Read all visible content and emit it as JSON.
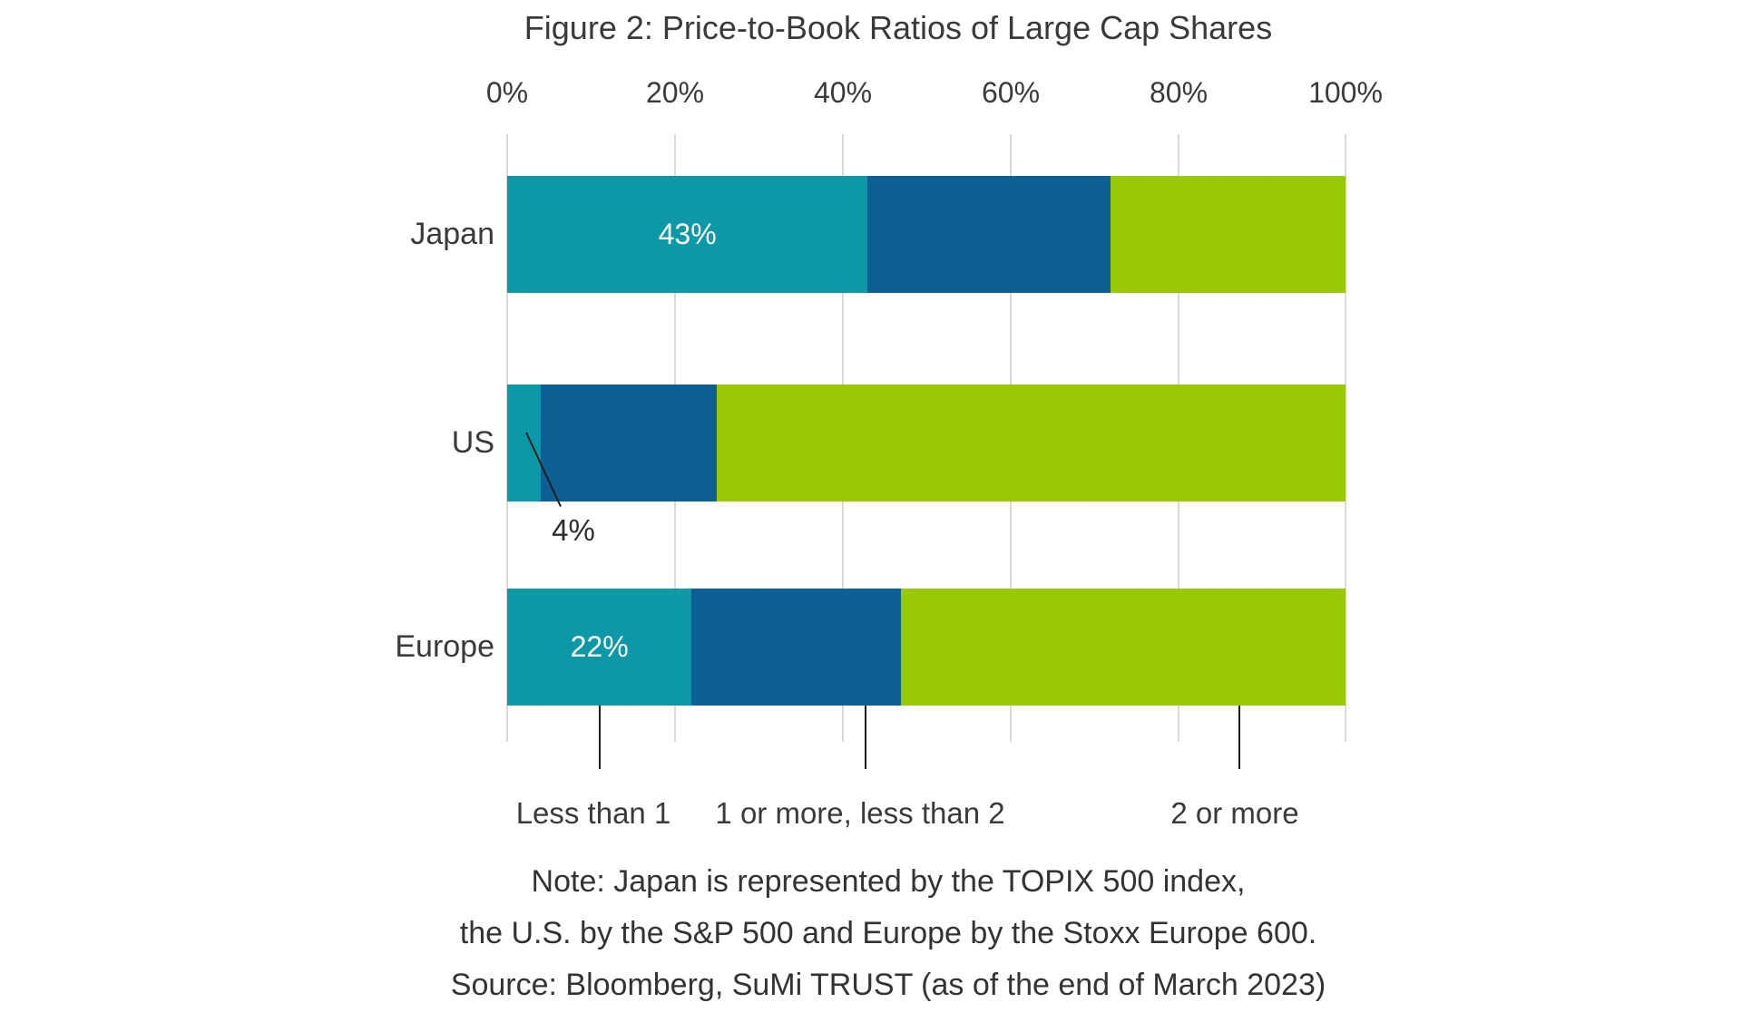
{
  "chart_data": {
    "type": "bar",
    "orientation": "horizontal-stacked",
    "title": "Figure 2: Price-to-Book Ratios of Large Cap Shares",
    "categories": [
      "Japan",
      "US",
      "Europe"
    ],
    "series": [
      {
        "name": "Less than 1",
        "color": "#0d98a8",
        "values": [
          43,
          4,
          22
        ]
      },
      {
        "name": "1 or more, less than 2",
        "color": "#0d6094",
        "values": [
          29,
          21,
          25
        ]
      },
      {
        "name": "2 or more",
        "color": "#99c806",
        "values": [
          28,
          75,
          53
        ]
      }
    ],
    "x_ticks": [
      {
        "label": "0%"
      },
      {
        "label": "20%"
      },
      {
        "label": "40%"
      },
      {
        "label": "60%"
      },
      {
        "label": "80%"
      },
      {
        "label": "100%"
      }
    ],
    "xlim": [
      0,
      100
    ],
    "grid": "vertical",
    "legend_position": "bottom",
    "data_labels": {
      "japan": "43%",
      "us": "4%",
      "europe": "22%"
    },
    "grid_color": "#d9d9d9",
    "text_color": "#3a3a3a"
  },
  "notes": {
    "line1": "Note: Japan is represented by the TOPIX 500 index,",
    "line2": "the U.S. by the S&P 500 and Europe by the Stoxx Europe 600.",
    "line3": "Source: Bloomberg, SuMi TRUST (as of the end of March 2023)"
  }
}
